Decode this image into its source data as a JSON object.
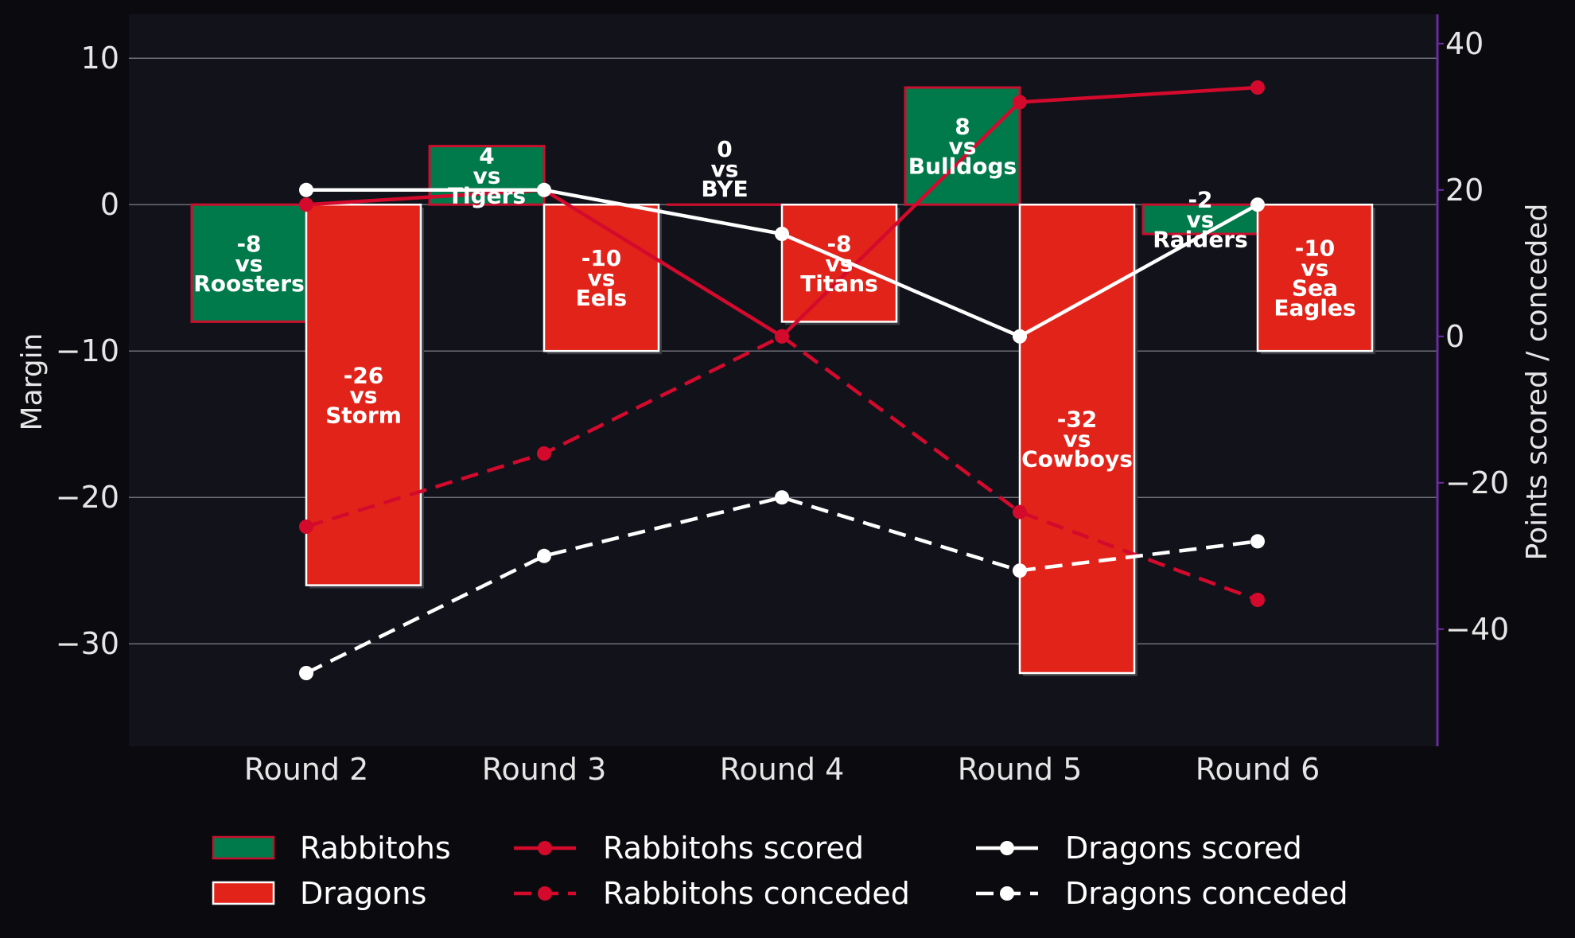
{
  "chart_data": {
    "type": "bar",
    "categories": [
      "Round 2",
      "Round 3",
      "Round 4",
      "Round 5",
      "Round 6"
    ],
    "y_left": {
      "label": "Margin",
      "ylim": [
        -37,
        13
      ],
      "ticks": [
        10,
        0,
        -10,
        -20,
        -30
      ],
      "tick_labels": [
        "10",
        "0",
        "−10",
        "−20",
        "−30"
      ]
    },
    "y_right": {
      "label": "Points scored / conceded",
      "ylim": [
        -56,
        44
      ],
      "ticks": [
        40,
        20,
        0,
        -20,
        -40
      ],
      "tick_labels": [
        "40",
        "20",
        "0",
        "−20",
        "−40"
      ]
    },
    "grid": true,
    "legend_position": "bottom",
    "colors": {
      "rabbitohs_bar": "#007a4a",
      "rabbitohs_edge": "#c8102e",
      "dragons_bar": "#e2231a",
      "dragons_edge": "#ffffff",
      "rabbitohs_line": "#d40a2d",
      "dragons_line": "#ffffff",
      "plot_bg": "#12121a",
      "fig_bg": "#0b0b0f",
      "right_spine": "#6a2ca0"
    },
    "bar_series": [
      {
        "name": "Rabbitohs",
        "values": [
          -8,
          4,
          0,
          8,
          -2
        ],
        "labels": [
          [
            "-8",
            "vs",
            "Roosters"
          ],
          [
            "4",
            "vs",
            "Tigers"
          ],
          [
            "0",
            "vs",
            "BYE"
          ],
          [
            "8",
            "vs",
            "Bulldogs"
          ],
          [
            "-2",
            "vs",
            "Raiders"
          ]
        ]
      },
      {
        "name": "Dragons",
        "values": [
          -26,
          -10,
          -8,
          -32,
          -10
        ],
        "labels": [
          [
            "-26",
            "vs",
            "Storm"
          ],
          [
            "-10",
            "vs",
            "Eels"
          ],
          [
            "-8",
            "vs",
            "Titans"
          ],
          [
            "-32",
            "vs",
            "Cowboys"
          ],
          [
            "-10",
            "vs",
            "Sea",
            "Eagles"
          ]
        ]
      }
    ],
    "line_series": [
      {
        "name": "Rabbitohs scored",
        "values": [
          18,
          20,
          0,
          32,
          34
        ],
        "style": "solid"
      },
      {
        "name": "Rabbitohs conceded",
        "values": [
          -26,
          -16,
          0,
          -24,
          -36
        ],
        "style": "dashed"
      },
      {
        "name": "Dragons scored",
        "values": [
          20,
          20,
          14,
          0,
          18
        ],
        "style": "solid"
      },
      {
        "name": "Dragons conceded",
        "values": [
          -46,
          -30,
          -22,
          -32,
          -28
        ],
        "style": "dashed"
      }
    ]
  }
}
